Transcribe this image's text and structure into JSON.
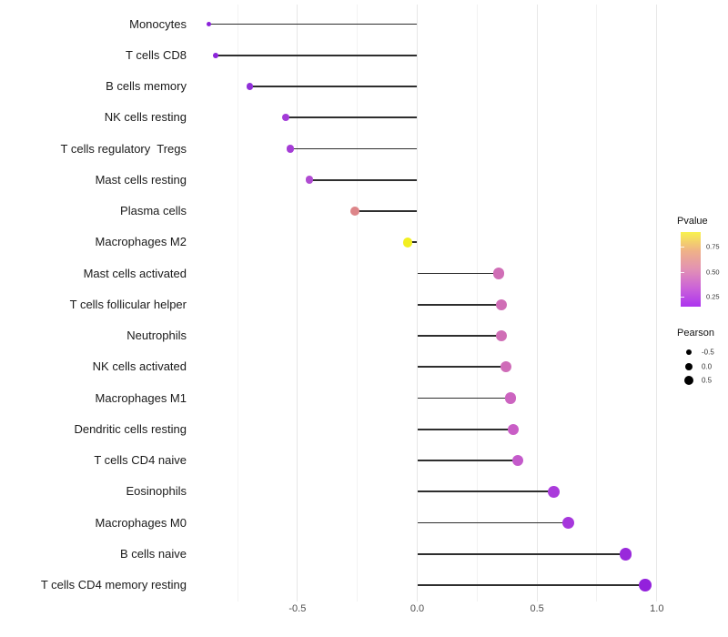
{
  "chart_data": {
    "type": "scatter",
    "subtype": "lollipop",
    "orientation": "horizontal",
    "title": "",
    "xlabel": "",
    "ylabel": "",
    "categories": [
      "Monocytes",
      "T cells CD8",
      "B cells memory",
      "NK cells resting",
      "T cells regulatory  Tregs",
      "Mast cells resting",
      "Plasma cells",
      "Macrophages M2",
      "Mast cells activated",
      "T cells follicular helper",
      "Neutrophils",
      "NK cells activated",
      "Macrophages M1",
      "Dendritic cells resting",
      "T cells CD4 naive",
      "Eosinophils",
      "Macrophages M0",
      "B cells naive",
      "T cells CD4 memory resting"
    ],
    "series": [
      {
        "name": "Pearson",
        "values": [
          -0.87,
          -0.84,
          -0.7,
          -0.55,
          -0.53,
          -0.45,
          -0.26,
          -0.04,
          0.34,
          0.35,
          0.35,
          0.37,
          0.39,
          0.4,
          0.42,
          0.57,
          0.63,
          0.87,
          0.95
        ]
      }
    ],
    "point_colors": [
      "#8B22DA",
      "#8C25DA",
      "#9030D8",
      "#A33BD8",
      "#A53DD6",
      "#B04BD2",
      "#DD8589",
      "#F2EF21",
      "#D06EB6",
      "#D06EB6",
      "#D06EB6",
      "#CF6CB8",
      "#CC64C0",
      "#C95EC6",
      "#C45ACB",
      "#AA3BDB",
      "#A637DC",
      "#9929DB",
      "#9321DC"
    ],
    "baseline": 0,
    "xlim": [
      -0.93,
      1.07
    ],
    "x_ticks": {
      "values": [
        -0.5,
        0.0,
        0.5,
        1.0
      ],
      "labels": [
        "-0.5",
        "0.0",
        "0.5",
        "1.0"
      ]
    },
    "x_minor_ticks": [
      -0.75,
      -0.25,
      0.25,
      0.75
    ],
    "grid": "vertical-only",
    "legend_position": "right",
    "legend": {
      "pvalue": {
        "title": "Pvalue",
        "tick_labels": [
          "0.75",
          "0.50",
          "0.25"
        ],
        "gradient_top_to_bottom": [
          "#F8F24E",
          "#EFB287",
          "#E291B4",
          "#CB63D8",
          "#AC34EF"
        ]
      },
      "pearson": {
        "title": "Pearson",
        "entries": [
          {
            "label": "-0.5",
            "value": -0.5
          },
          {
            "label": "0.0",
            "value": 0.0
          },
          {
            "label": "0.5",
            "value": 0.5
          }
        ],
        "dot_color": "#000000"
      }
    },
    "colors": {
      "segment": "#2e2e2e",
      "grid_major": "#e7e7e7",
      "grid_minor": "#f2f2f2",
      "axis_text": "#4d4d4d",
      "background": "#ffffff"
    }
  }
}
